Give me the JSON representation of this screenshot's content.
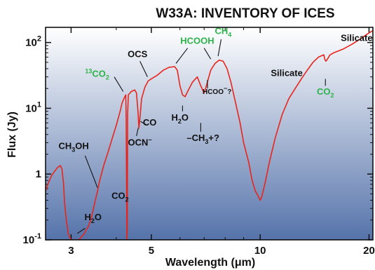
{
  "chart_data": {
    "type": "line",
    "title": "W33A: INVENTORY OF ICES",
    "xlabel": "Wavelength (μm)",
    "ylabel": "Flux (Jy)",
    "x_scale": "log",
    "y_scale": "log",
    "xlim": [
      2.55,
      20.5
    ],
    "ylim": [
      0.1,
      170
    ],
    "x_ticks": [
      {
        "value": 3,
        "label": "3"
      },
      {
        "value": 5,
        "label": "5"
      },
      {
        "value": 10,
        "label": "10"
      },
      {
        "value": 20,
        "label": "20"
      }
    ],
    "y_ticks": [
      {
        "value": 0.1,
        "base": "10",
        "exp": "-1"
      },
      {
        "value": 1,
        "base": "1",
        "exp": ""
      },
      {
        "value": 10,
        "base": "10",
        "exp": "1"
      },
      {
        "value": 100,
        "base": "10",
        "exp": "2"
      }
    ],
    "grid": false,
    "background": {
      "top": "#ffffff",
      "bottom": "#5573aa"
    },
    "series": [
      {
        "color": "#e8251c",
        "points": [
          [
            2.55,
            0.55
          ],
          [
            2.6,
            0.75
          ],
          [
            2.65,
            0.95
          ],
          [
            2.7,
            1.1
          ],
          [
            2.75,
            1.25
          ],
          [
            2.8,
            1.35
          ],
          [
            2.83,
            1.2
          ],
          [
            2.86,
            0.7
          ],
          [
            2.88,
            0.35
          ],
          [
            2.91,
            0.2
          ],
          [
            2.95,
            0.12
          ],
          [
            3.0,
            0.1
          ],
          [
            3.05,
            0.1
          ],
          [
            3.1,
            0.1
          ],
          [
            3.15,
            0.1
          ],
          [
            3.2,
            0.11
          ],
          [
            3.25,
            0.12
          ],
          [
            3.3,
            0.14
          ],
          [
            3.35,
            0.16
          ],
          [
            3.4,
            0.2
          ],
          [
            3.45,
            0.28
          ],
          [
            3.5,
            0.4
          ],
          [
            3.55,
            0.55
          ],
          [
            3.6,
            0.8
          ],
          [
            3.7,
            1.4
          ],
          [
            3.8,
            2.2
          ],
          [
            3.9,
            3.5
          ],
          [
            4.0,
            5.5
          ],
          [
            4.1,
            9.0
          ],
          [
            4.15,
            12.0
          ],
          [
            4.2,
            14.0
          ],
          [
            4.25,
            16.0
          ],
          [
            4.26,
            7.0
          ],
          [
            4.27,
            0.9
          ],
          [
            4.28,
            0.1
          ],
          [
            4.29,
            0.14
          ],
          [
            4.3,
            8.0
          ],
          [
            4.32,
            16.0
          ],
          [
            4.4,
            18.0
          ],
          [
            4.5,
            19.0
          ],
          [
            4.55,
            17.0
          ],
          [
            4.6,
            8.0
          ],
          [
            4.62,
            5.0
          ],
          [
            4.65,
            7.0
          ],
          [
            4.7,
            14.0
          ],
          [
            4.8,
            21.0
          ],
          [
            4.9,
            26.0
          ],
          [
            5.0,
            28.0
          ],
          [
            5.2,
            32.0
          ],
          [
            5.4,
            38.0
          ],
          [
            5.6,
            42.0
          ],
          [
            5.8,
            43.0
          ],
          [
            5.9,
            38.0
          ],
          [
            6.0,
            22.0
          ],
          [
            6.1,
            16.0
          ],
          [
            6.2,
            15.0
          ],
          [
            6.3,
            18.0
          ],
          [
            6.5,
            25.0
          ],
          [
            6.7,
            30.0
          ],
          [
            6.85,
            22.0
          ],
          [
            7.0,
            17.0
          ],
          [
            7.1,
            22.0
          ],
          [
            7.3,
            38.0
          ],
          [
            7.5,
            48.0
          ],
          [
            7.7,
            54.0
          ],
          [
            7.9,
            52.0
          ],
          [
            8.1,
            40.0
          ],
          [
            8.3,
            25.0
          ],
          [
            8.5,
            14.0
          ],
          [
            8.8,
            6.0
          ],
          [
            9.0,
            3.0
          ],
          [
            9.3,
            1.5
          ],
          [
            9.5,
            0.8
          ],
          [
            9.7,
            0.55
          ],
          [
            9.9,
            0.45
          ],
          [
            10.0,
            0.4
          ],
          [
            10.1,
            0.45
          ],
          [
            10.3,
            0.7
          ],
          [
            10.6,
            1.5
          ],
          [
            11.0,
            3.5
          ],
          [
            11.5,
            8.0
          ],
          [
            12.0,
            14.0
          ],
          [
            12.5,
            20.0
          ],
          [
            13.0,
            28.0
          ],
          [
            13.5,
            38.0
          ],
          [
            14.0,
            50.0
          ],
          [
            14.5,
            60.0
          ],
          [
            15.0,
            65.0
          ],
          [
            15.1,
            55.0
          ],
          [
            15.2,
            52.0
          ],
          [
            15.35,
            56.0
          ],
          [
            15.6,
            65.0
          ],
          [
            16.0,
            70.0
          ],
          [
            17.0,
            80.0
          ],
          [
            18.0,
            95.0
          ],
          [
            19.0,
            115.0
          ],
          [
            20.0,
            140.0
          ],
          [
            20.5,
            152.0
          ]
        ]
      }
    ],
    "annotations": [
      {
        "id": "title-co2-13",
        "pre": "13",
        "text": "CO",
        "sub": "2",
        "color": "#2db34a",
        "x": 3.28,
        "y": 30,
        "anchor": "start"
      },
      {
        "id": "ocs",
        "text": "OCS",
        "color": "#111",
        "x": 4.58,
        "y": 60,
        "anchor": "middle"
      },
      {
        "id": "hcooh",
        "text": "HCOOH",
        "color": "#2db34a",
        "x": 6.7,
        "y": 95,
        "anchor": "middle"
      },
      {
        "id": "ch4",
        "text": "CH",
        "sub": "4",
        "color": "#2db34a",
        "x": 7.9,
        "y": 135,
        "anchor": "middle"
      },
      {
        "id": "silicate-top",
        "text": "Silicate",
        "color": "#111",
        "x": 16.7,
        "y": 105,
        "anchor": "start"
      },
      {
        "id": "silicate-mid",
        "text": "Silicate",
        "color": "#111",
        "x": 10.7,
        "y": 31,
        "anchor": "start"
      },
      {
        "id": "hcoo-minus",
        "text": "HCOO",
        "sup": "−",
        "post": "?",
        "color": "#111",
        "x": 7.6,
        "y": 16.5,
        "anchor": "middle",
        "small": true
      },
      {
        "id": "h2o-6",
        "text": "H",
        "sub": "2",
        "post": "O",
        "color": "#111",
        "x": 6.0,
        "y": 6.5,
        "anchor": "middle"
      },
      {
        "id": "ch3-plus",
        "text": "–CH",
        "sub": "3",
        "post": "+?",
        "color": "#111",
        "x": 6.95,
        "y": 3.2,
        "anchor": "middle"
      },
      {
        "id": "co",
        "text": "CO",
        "color": "#111",
        "x": 4.95,
        "y": 5.5,
        "anchor": "middle"
      },
      {
        "id": "ocn-minus",
        "text": "OCN",
        "sup": "−",
        "color": "#111",
        "x": 4.65,
        "y": 2.7,
        "anchor": "middle"
      },
      {
        "id": "co2-15",
        "text": "CO",
        "sub": "2",
        "color": "#2db34a",
        "x": 15.15,
        "y": 16.2,
        "anchor": "middle"
      },
      {
        "id": "ch3oh",
        "text": "CH",
        "sub": "3",
        "post": "OH",
        "color": "#111",
        "x": 3.05,
        "y": 2.4,
        "anchor": "middle"
      },
      {
        "id": "co2-bottom",
        "text": "CO",
        "sub": "2",
        "color": "#111",
        "x": 4.1,
        "y": 0.42,
        "anchor": "middle"
      },
      {
        "id": "h2o-bottom",
        "text": "H",
        "sub": "2",
        "post": "O",
        "color": "#111",
        "x": 3.45,
        "y": 0.2,
        "anchor": "middle"
      }
    ],
    "leader_lines": [
      {
        "id": "co2-13-line",
        "x1": 3.95,
        "y1": 30,
        "x2": 4.18,
        "y2": 18
      },
      {
        "id": "ocs-line",
        "x1": 4.65,
        "y1": 52,
        "x2": 4.88,
        "y2": 30
      },
      {
        "id": "hcooh-line-a",
        "x1": 6.3,
        "y1": 82,
        "x2": 5.85,
        "y2": 48
      },
      {
        "id": "hcooh-line-b",
        "x1": 7.0,
        "y1": 82,
        "x2": 7.3,
        "y2": 56
      },
      {
        "id": "ch4-line",
        "x1": 7.8,
        "y1": 112,
        "x2": 7.65,
        "y2": 62
      },
      {
        "id": "hcoo-line",
        "x1": 7.15,
        "y1": 27,
        "x2": 7.15,
        "y2": 20
      },
      {
        "id": "h2o-6-line",
        "x1": 6.1,
        "y1": 11,
        "x2": 6.1,
        "y2": 9
      },
      {
        "id": "ch3-line",
        "x1": 6.85,
        "y1": 6,
        "x2": 6.85,
        "y2": 4.4
      },
      {
        "id": "co-line",
        "x1": 4.67,
        "y1": 6.3,
        "x2": 4.85,
        "y2": 5.6
      },
      {
        "id": "ocn-line",
        "x1": 4.55,
        "y1": 3.8,
        "x2": 4.6,
        "y2": 5.0
      },
      {
        "id": "co2-15-line",
        "x1": 15.15,
        "y1": 28,
        "x2": 15.15,
        "y2": 22
      },
      {
        "id": "ch3oh-line",
        "x1": 3.28,
        "y1": 1.9,
        "x2": 3.55,
        "y2": 0.62
      },
      {
        "id": "h2o-bottom-line",
        "x1": 3.28,
        "y1": 0.15,
        "x2": 3.12,
        "y2": 0.125
      }
    ]
  }
}
